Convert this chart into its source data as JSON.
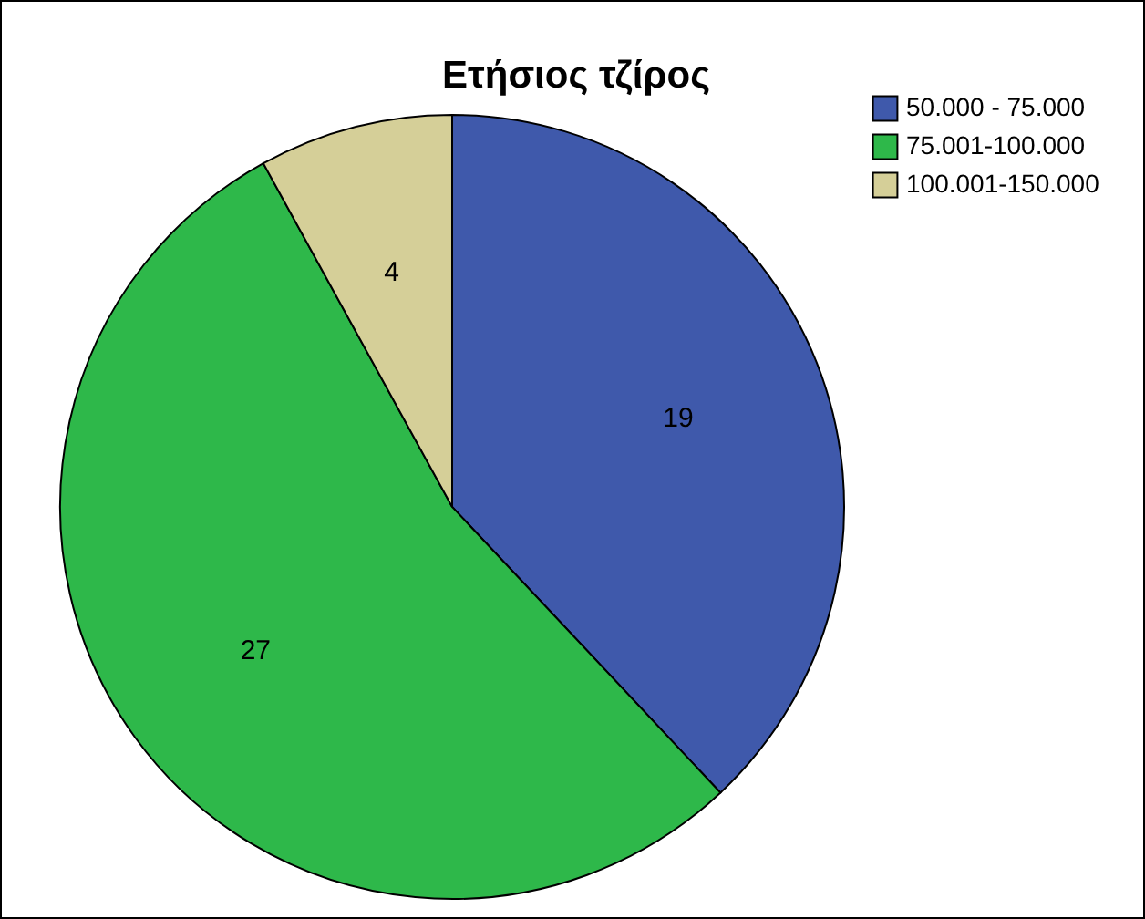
{
  "chart_data": {
    "type": "pie",
    "title": "Ετήσιος τζίρος",
    "categories": [
      "50.000 - 75.000",
      "75.001-100.000",
      "100.001-150.000"
    ],
    "values": [
      19,
      27,
      4
    ],
    "colors": [
      "#3f59ab",
      "#2eb84a",
      "#d5cf98"
    ],
    "data_labels": true,
    "legend": "top right"
  }
}
